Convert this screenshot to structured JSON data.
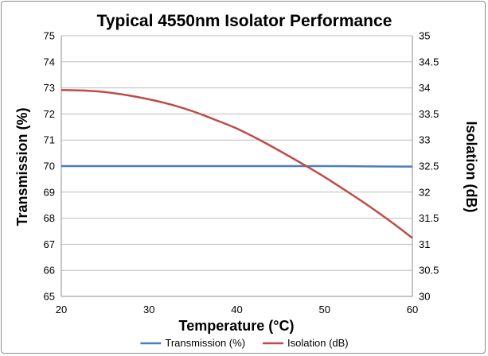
{
  "chart_data": {
    "type": "line",
    "title": "Typical 4550nm Isolator Performance",
    "xlabel": "Temperature (°C)",
    "ylabel_left": "Transmission (%)",
    "ylabel_right": "Isolation (dB)",
    "xlim": [
      20,
      60
    ],
    "ylim_left": [
      65,
      75
    ],
    "ylim_right": [
      30,
      35
    ],
    "x_ticks": [
      "20",
      "30",
      "40",
      "50",
      "60"
    ],
    "y_ticks_left": [
      "65",
      "66",
      "67",
      "68",
      "69",
      "70",
      "71",
      "72",
      "73",
      "74",
      "75"
    ],
    "y_ticks_right": [
      "30",
      "30.5",
      "31",
      "31.5",
      "32",
      "32.5",
      "33",
      "33.5",
      "34",
      "34.5",
      "35"
    ],
    "grid": "horizontal",
    "legend_position": "bottom",
    "series": [
      {
        "name": "Transmission (%)",
        "axis": "left",
        "color": "#4a7ebb",
        "x": [
          20,
          25,
          30,
          35,
          40,
          45,
          50,
          55,
          60
        ],
        "values": [
          70.0,
          70.0,
          70.0,
          70.0,
          70.0,
          70.0,
          70.0,
          69.99,
          69.98
        ]
      },
      {
        "name": "Isolation (dB)",
        "axis": "right",
        "color": "#be4b48",
        "x": [
          20,
          22.5,
          25,
          27.5,
          30,
          32.5,
          35,
          37.5,
          40,
          42.5,
          45,
          47.5,
          50,
          52.5,
          55,
          57.5,
          60
        ],
        "values": [
          33.96,
          33.95,
          33.92,
          33.86,
          33.78,
          33.68,
          33.55,
          33.39,
          33.22,
          33.01,
          32.78,
          32.54,
          32.29,
          32.02,
          31.74,
          31.44,
          31.12
        ]
      }
    ]
  }
}
